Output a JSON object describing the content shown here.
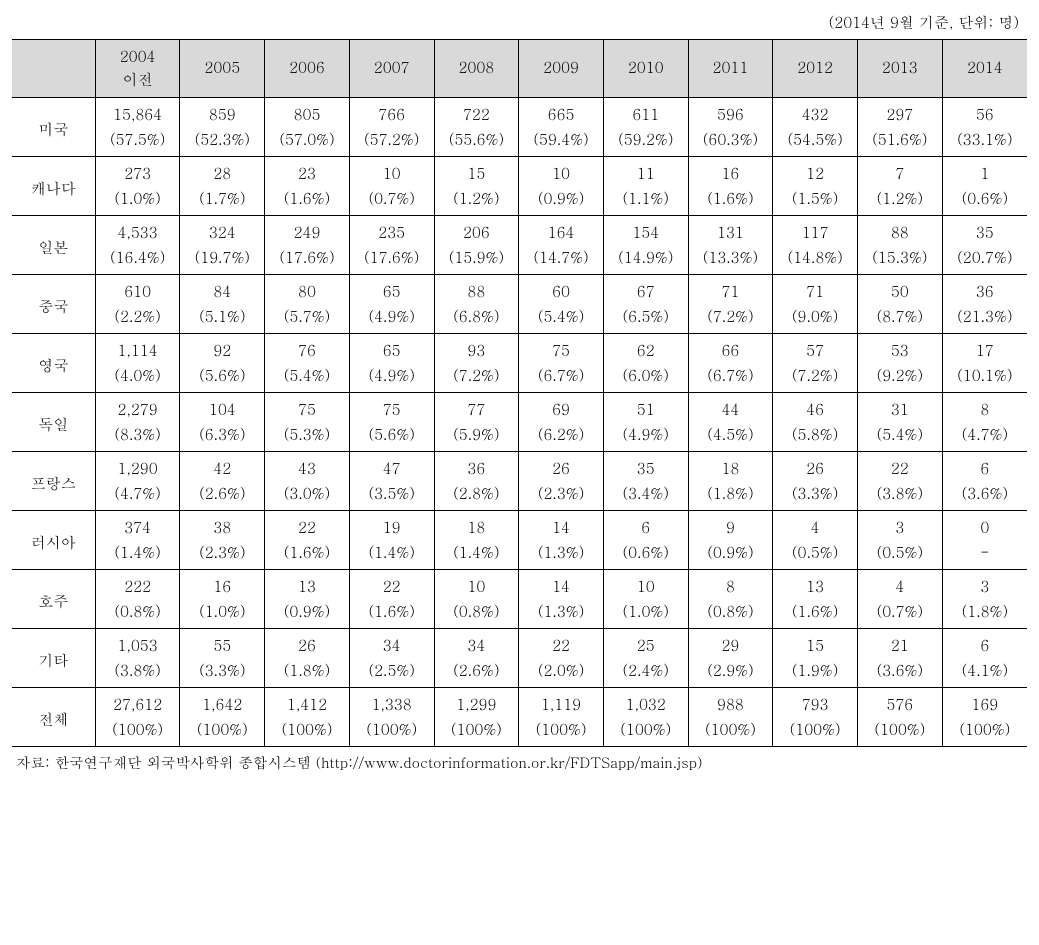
{
  "caption": "(2014년 9월 기준, 단위: 명)",
  "footnote": "자료: 한국연구재단 외국박사학위 종합시스템 (http://www.doctorinformation.or.kr/FDTSapp/main.jsp)",
  "columns": [
    "2004\n이전",
    "2005",
    "2006",
    "2007",
    "2008",
    "2009",
    "2010",
    "2011",
    "2012",
    "2013",
    "2014"
  ],
  "rows": [
    {
      "label": "미국",
      "values": [
        "15,864",
        "859",
        "805",
        "766",
        "722",
        "665",
        "611",
        "596",
        "432",
        "297",
        "56"
      ],
      "pcts": [
        "(57.5%)",
        "(52.3%)",
        "(57.0%)",
        "(57.2%)",
        "(55.6%)",
        "(59.4%)",
        "(59.2%)",
        "(60.3%)",
        "(54.5%)",
        "(51.6%)",
        "(33.1%)"
      ]
    },
    {
      "label": "캐나다",
      "values": [
        "273",
        "28",
        "23",
        "10",
        "15",
        "10",
        "11",
        "16",
        "12",
        "7",
        "1"
      ],
      "pcts": [
        "(1.0%)",
        "(1.7%)",
        "(1.6%)",
        "(0.7%)",
        "(1.2%)",
        "(0.9%)",
        "(1.1%)",
        "(1.6%)",
        "(1.5%)",
        "(1.2%)",
        "(0.6%)"
      ]
    },
    {
      "label": "일본",
      "values": [
        "4,533",
        "324",
        "249",
        "235",
        "206",
        "164",
        "154",
        "131",
        "117",
        "88",
        "35"
      ],
      "pcts": [
        "(16.4%)",
        "(19.7%)",
        "(17.6%)",
        "(17.6%)",
        "(15.9%)",
        "(14.7%)",
        "(14.9%)",
        "(13.3%)",
        "(14.8%)",
        "(15.3%)",
        "(20.7%)"
      ]
    },
    {
      "label": "중국",
      "values": [
        "610",
        "84",
        "80",
        "65",
        "88",
        "60",
        "67",
        "71",
        "71",
        "50",
        "36"
      ],
      "pcts": [
        "(2.2%)",
        "(5.1%)",
        "(5.7%)",
        "(4.9%)",
        "(6.8%)",
        "(5.4%)",
        "(6.5%)",
        "(7.2%)",
        "(9.0%)",
        "(8.7%)",
        "(21.3%)"
      ]
    },
    {
      "label": "영국",
      "values": [
        "1,114",
        "92",
        "76",
        "65",
        "93",
        "75",
        "62",
        "66",
        "57",
        "53",
        "17"
      ],
      "pcts": [
        "(4.0%)",
        "(5.6%)",
        "(5.4%)",
        "(4.9%)",
        "(7.2%)",
        "(6.7%)",
        "(6.0%)",
        "(6.7%)",
        "(7.2%)",
        "(9.2%)",
        "(10.1%)"
      ]
    },
    {
      "label": "독일",
      "values": [
        "2,279",
        "104",
        "75",
        "75",
        "77",
        "69",
        "51",
        "44",
        "46",
        "31",
        "8"
      ],
      "pcts": [
        "(8.3%)",
        "(6.3%)",
        "(5.3%)",
        "(5.6%)",
        "(5.9%)",
        "(6.2%)",
        "(4.9%)",
        "(4.5%)",
        "(5.8%)",
        "(5.4%)",
        "(4.7%)"
      ]
    },
    {
      "label": "프랑스",
      "values": [
        "1,290",
        "42",
        "43",
        "47",
        "36",
        "26",
        "35",
        "18",
        "26",
        "22",
        "6"
      ],
      "pcts": [
        "(4.7%)",
        "(2.6%)",
        "(3.0%)",
        "(3.5%)",
        "(2.8%)",
        "(2.3%)",
        "(3.4%)",
        "(1.8%)",
        "(3.3%)",
        "(3.8%)",
        "(3.6%)"
      ]
    },
    {
      "label": "러시아",
      "values": [
        "374",
        "38",
        "22",
        "19",
        "18",
        "14",
        "6",
        "9",
        "4",
        "3",
        "0"
      ],
      "pcts": [
        "(1.4%)",
        "(2.3%)",
        "(1.6%)",
        "(1.4%)",
        "(1.4%)",
        "(1.3%)",
        "(0.6%)",
        "(0.9%)",
        "(0.5%)",
        "(0.5%)",
        "-"
      ]
    },
    {
      "label": "호주",
      "values": [
        "222",
        "16",
        "13",
        "22",
        "10",
        "14",
        "10",
        "8",
        "13",
        "4",
        "3"
      ],
      "pcts": [
        "(0.8%)",
        "(1.0%)",
        "(0.9%)",
        "(1.6%)",
        "(0.8%)",
        "(1.3%)",
        "(1.0%)",
        "(0.8%)",
        "(1.6%)",
        "(0.7%)",
        "(1.8%)"
      ]
    },
    {
      "label": "기타",
      "values": [
        "1,053",
        "55",
        "26",
        "34",
        "34",
        "22",
        "25",
        "29",
        "15",
        "21",
        "6"
      ],
      "pcts": [
        "(3.8%)",
        "(3.3%)",
        "(1.8%)",
        "(2.5%)",
        "(2.6%)",
        "(2.0%)",
        "(2.4%)",
        "(2.9%)",
        "(1.9%)",
        "(3.6%)",
        "(4.1%)"
      ]
    },
    {
      "label": "전체",
      "values": [
        "27,612",
        "1,642",
        "1,412",
        "1,338",
        "1,299",
        "1,119",
        "1,032",
        "988",
        "793",
        "576",
        "169"
      ],
      "pcts": [
        "(100%)",
        "(100%)",
        "(100%)",
        "(100%)",
        "(100%)",
        "(100%)",
        "(100%)",
        "(100%)",
        "(100%)",
        "(100%)",
        "(100%)"
      ]
    }
  ]
}
